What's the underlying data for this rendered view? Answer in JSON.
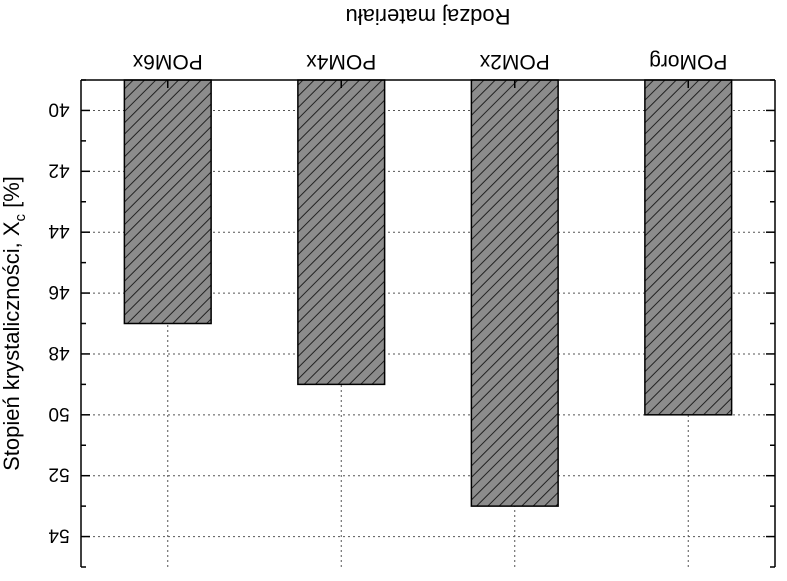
{
  "chart_data": {
    "type": "bar",
    "orientation": "vertical",
    "image_rotation": "180deg",
    "xlabel": "Rodzaj materiału",
    "ylabel": "Stopień krystaliczności, X",
    "ylabel_subscript": "c",
    "ylabel_unit": " [%]",
    "categories": [
      "POMorg",
      "POM2x",
      "POM4x",
      "POM6x"
    ],
    "values": [
      50.0,
      53.0,
      49.0,
      47.0
    ],
    "ylim": [
      39.0,
      55.0
    ],
    "yticks": [
      40,
      42,
      44,
      46,
      48,
      50,
      52,
      54
    ],
    "ytick_labels": [
      "40",
      "42",
      "44",
      "46",
      "48",
      "50",
      "52",
      "54"
    ],
    "grid": true,
    "bar_fill": "#8c8c8c",
    "bar_pattern": "diagonal hatch",
    "bar_stroke": "#000000"
  }
}
